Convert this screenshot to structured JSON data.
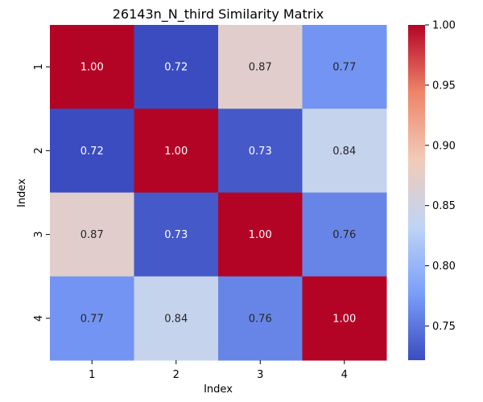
{
  "chart_data": {
    "type": "heatmap",
    "title": "26143n_N_third Similarity Matrix",
    "xlabel": "Index",
    "ylabel": "Index",
    "x_categories": [
      "1",
      "2",
      "3",
      "4"
    ],
    "y_categories": [
      "1",
      "2",
      "3",
      "4"
    ],
    "values": [
      [
        1.0,
        0.72,
        0.87,
        0.77
      ],
      [
        0.72,
        1.0,
        0.73,
        0.84
      ],
      [
        0.87,
        0.73,
        1.0,
        0.76
      ],
      [
        0.77,
        0.84,
        0.76,
        1.0
      ]
    ],
    "value_labels": [
      [
        "1.00",
        "0.72",
        "0.87",
        "0.77"
      ],
      [
        "0.72",
        "1.00",
        "0.73",
        "0.84"
      ],
      [
        "0.87",
        "0.73",
        "1.00",
        "0.76"
      ],
      [
        "0.77",
        "0.84",
        "0.76",
        "1.00"
      ]
    ],
    "colormap": "coolwarm",
    "colormap_stops": [
      "#3b4cc0",
      "#7b9ff9",
      "#c0d4f5",
      "#f2cbb7",
      "#ee8468",
      "#b40426"
    ],
    "color_range": [
      0.7216,
      1.0
    ],
    "colorbar": {
      "ticks": [
        0.75,
        0.8,
        0.85,
        0.9,
        0.95,
        1.0
      ],
      "tick_labels": [
        "0.75",
        "0.80",
        "0.85",
        "0.90",
        "0.95",
        "1.00"
      ]
    },
    "annotation_colors": {
      "light": "#ffffff",
      "dark": "#262626"
    }
  }
}
